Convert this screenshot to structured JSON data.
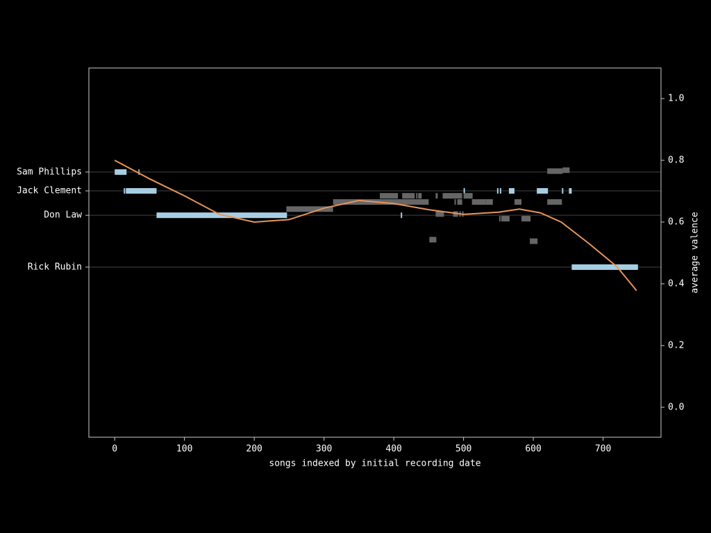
{
  "chart_data": {
    "type": "timeline",
    "xlabel": "songs indexed by initial recording date",
    "ylabel": "average valence",
    "xlim": [
      -37,
      783
    ],
    "xticks": [
      0,
      100,
      200,
      300,
      400,
      500,
      600,
      700
    ],
    "ylim": [
      -0.097,
      1.099
    ],
    "yticks": [
      {
        "value": 0,
        "label": "0.0"
      },
      0.2,
      0.4,
      0.6,
      0.8,
      {
        "value": 1,
        "label": "1.0"
      }
    ],
    "producer_ticks": [
      {
        "value": 0.762,
        "label": "Sam Phillips"
      },
      {
        "value": 0.701,
        "label": "Jack Clement"
      },
      {
        "value": 0.622,
        "label": "Don Law"
      },
      {
        "value": 0.454,
        "label": "Rick Rubin"
      }
    ],
    "grid_color": "#444444",
    "bars": [
      {
        "x": [
          0,
          17
        ],
        "y": 0.762,
        "color": "#a6cee3"
      },
      {
        "x": [
          34,
          35
        ],
        "y": 0.762,
        "color": "#a6cee3"
      },
      {
        "x": [
          13,
          15
        ],
        "y": 0.701,
        "color": "#a6cee3"
      },
      {
        "x": [
          16,
          60
        ],
        "y": 0.701,
        "color": "#a6cee3"
      },
      {
        "x": [
          500,
          502
        ],
        "y": 0.701,
        "color": "#a6cee3"
      },
      {
        "x": [
          548,
          550
        ],
        "y": 0.701,
        "color": "#a6cee3"
      },
      {
        "x": [
          552,
          554
        ],
        "y": 0.701,
        "color": "#a6cee3"
      },
      {
        "x": [
          565,
          573
        ],
        "y": 0.701,
        "color": "#a6cee3"
      },
      {
        "x": [
          605,
          621
        ],
        "y": 0.701,
        "color": "#a6cee3"
      },
      {
        "x": [
          641,
          643
        ],
        "y": 0.701,
        "color": "#a6cee3"
      },
      {
        "x": [
          651,
          655
        ],
        "y": 0.701,
        "color": "#a6cee3"
      },
      {
        "x": [
          60,
          247
        ],
        "y": 0.622,
        "color": "#a6cee3"
      },
      {
        "x": [
          410,
          412
        ],
        "y": 0.622,
        "color": "#a6cee3"
      },
      {
        "x": [
          655,
          750
        ],
        "y": 0.454,
        "color": "#a6cee3"
      },
      {
        "x": [
          620,
          642
        ],
        "y": 0.765,
        "color": "#666666"
      },
      {
        "x": [
          642,
          652
        ],
        "y": 0.768,
        "color": "#666666"
      },
      {
        "x": [
          380,
          406
        ],
        "y": 0.685,
        "color": "#666666"
      },
      {
        "x": [
          412,
          430
        ],
        "y": 0.685,
        "color": "#666666"
      },
      {
        "x": [
          432,
          434
        ],
        "y": 0.685,
        "color": "#666666"
      },
      {
        "x": [
          435,
          440
        ],
        "y": 0.685,
        "color": "#666666"
      },
      {
        "x": [
          460,
          463
        ],
        "y": 0.685,
        "color": "#666666"
      },
      {
        "x": [
          470,
          498
        ],
        "y": 0.685,
        "color": "#666666"
      },
      {
        "x": [
          500,
          513
        ],
        "y": 0.685,
        "color": "#666666"
      },
      {
        "x": [
          313,
          450
        ],
        "y": 0.665,
        "color": "#666666"
      },
      {
        "x": [
          487,
          489
        ],
        "y": 0.665,
        "color": "#666666"
      },
      {
        "x": [
          491,
          498
        ],
        "y": 0.665,
        "color": "#666666"
      },
      {
        "x": [
          512,
          532
        ],
        "y": 0.665,
        "color": "#666666"
      },
      {
        "x": [
          532,
          542
        ],
        "y": 0.665,
        "color": "#666666"
      },
      {
        "x": [
          573,
          583
        ],
        "y": 0.665,
        "color": "#666666"
      },
      {
        "x": [
          620,
          641
        ],
        "y": 0.665,
        "color": "#666666"
      },
      {
        "x": [
          246,
          313
        ],
        "y": 0.642,
        "color": "#666666"
      },
      {
        "x": [
          460,
          472
        ],
        "y": 0.626,
        "color": "#666666"
      },
      {
        "x": [
          485,
          492
        ],
        "y": 0.626,
        "color": "#666666"
      },
      {
        "x": [
          494,
          496
        ],
        "y": 0.626,
        "color": "#666666"
      },
      {
        "x": [
          498,
          500
        ],
        "y": 0.626,
        "color": "#666666"
      },
      {
        "x": [
          551,
          553
        ],
        "y": 0.611,
        "color": "#666666"
      },
      {
        "x": [
          554,
          566
        ],
        "y": 0.611,
        "color": "#666666"
      },
      {
        "x": [
          583,
          596
        ],
        "y": 0.611,
        "color": "#666666"
      },
      {
        "x": [
          451,
          461
        ],
        "y": 0.543,
        "color": "#666666"
      },
      {
        "x": [
          595,
          606
        ],
        "y": 0.538,
        "color": "#666666"
      }
    ],
    "curve": {
      "color": "#e8955a",
      "x": [
        0,
        50,
        100,
        150,
        200,
        250,
        300,
        350,
        400,
        450,
        500,
        550,
        580,
        610,
        640,
        680,
        720,
        748
      ],
      "values": [
        0.8,
        0.74,
        0.685,
        0.625,
        0.6,
        0.608,
        0.645,
        0.67,
        0.66,
        0.64,
        0.625,
        0.632,
        0.642,
        0.63,
        0.6,
        0.53,
        0.455,
        0.378
      ]
    }
  }
}
